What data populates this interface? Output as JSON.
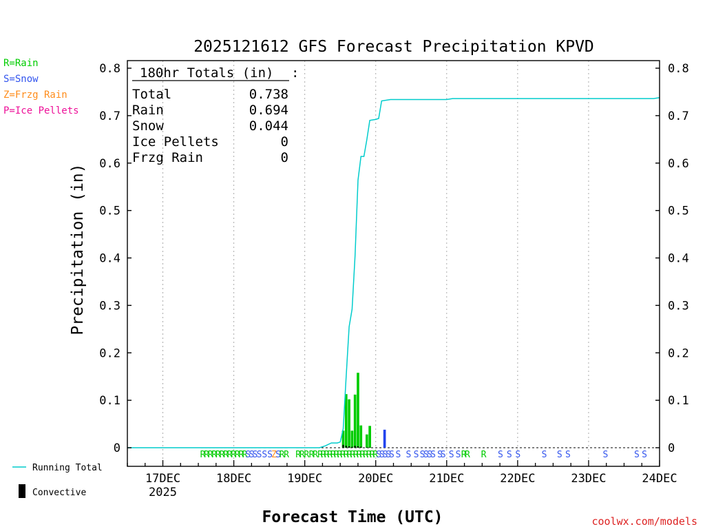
{
  "chart_data": {
    "type": "bar+line",
    "title": "2025121612 GFS Forecast Precipitation KPVD",
    "ylabel": "Precipitation (in)",
    "xlabel": "Forecast Time (UTC)",
    "ylim": [
      0,
      0.8
    ],
    "y_ticks": [
      0,
      0.1,
      0.2,
      0.3,
      0.4,
      0.5,
      0.6,
      0.7,
      0.8
    ],
    "y_tick_labels": [
      "0",
      "0.1",
      "0.2",
      "0.3",
      "0.4",
      "0.5",
      "0.6",
      "0.7",
      "0.8"
    ],
    "x_range_hours": [
      0,
      180
    ],
    "x_ticks": [
      {
        "hour": 12,
        "label": "17DEC",
        "sublabel": "2025"
      },
      {
        "hour": 36,
        "label": "18DEC"
      },
      {
        "hour": 60,
        "label": "19DEC"
      },
      {
        "hour": 84,
        "label": "20DEC"
      },
      {
        "hour": 108,
        "label": "21DEC"
      },
      {
        "hour": 132,
        "label": "22DEC"
      },
      {
        "hour": 156,
        "label": "23DEC"
      },
      {
        "hour": 180,
        "label": "24DEC"
      }
    ],
    "totals_box": {
      "heading": "180hr Totals (in)",
      "heading_suffix": ":",
      "rows": [
        {
          "label": "Total",
          "value": "0.738"
        },
        {
          "label": "Rain",
          "value": "0.694"
        },
        {
          "label": "Snow",
          "value": "0.044"
        },
        {
          "label": "Ice Pellets",
          "value": "0"
        },
        {
          "label": "Frzg Rain",
          "value": "0"
        }
      ]
    },
    "type_legend": [
      {
        "label": "R=Rain",
        "color": "#00cc00"
      },
      {
        "label": "S=Snow",
        "color": "#3355ee"
      },
      {
        "label": "Z=Frzg Rain",
        "color": "#ff8c1a"
      },
      {
        "label": "P=Ice Pellets",
        "color": "#ee1199"
      }
    ],
    "series_legend": [
      {
        "name": "Running Total",
        "color": "#00cccc",
        "kind": "line"
      },
      {
        "name": "Convective",
        "color": "#000000",
        "kind": "bar"
      }
    ],
    "bars": [
      {
        "hour": 73.0,
        "value": 0.036,
        "type": "rain",
        "convective": 0.006
      },
      {
        "hour": 74.0,
        "value": 0.113,
        "type": "rain",
        "convective": 0.004
      },
      {
        "hour": 75.0,
        "value": 0.102,
        "type": "rain",
        "convective": 0.003
      },
      {
        "hour": 76.0,
        "value": 0.036,
        "type": "rain",
        "convective": 0.002
      },
      {
        "hour": 77.0,
        "value": 0.112,
        "type": "rain",
        "convective": 0.004
      },
      {
        "hour": 78.0,
        "value": 0.158,
        "type": "rain",
        "convective": 0.003
      },
      {
        "hour": 79.0,
        "value": 0.047,
        "type": "rain",
        "convective": 0.002
      },
      {
        "hour": 81.0,
        "value": 0.028,
        "type": "rain",
        "convective": 0.001
      },
      {
        "hour": 82.0,
        "value": 0.046,
        "type": "rain",
        "convective": 0.001
      },
      {
        "hour": 87.0,
        "value": 0.038,
        "type": "snow",
        "convective": 0
      }
    ],
    "running_total": {
      "hours": [
        0,
        65,
        67,
        69,
        71,
        72,
        73,
        74,
        75,
        76,
        77,
        78,
        79,
        80,
        81,
        82,
        84,
        85,
        86,
        89,
        108,
        110,
        178,
        180
      ],
      "values": [
        0,
        0,
        0.004,
        0.01,
        0.01,
        0.012,
        0.04,
        0.15,
        0.255,
        0.292,
        0.404,
        0.564,
        0.614,
        0.614,
        0.65,
        0.69,
        0.692,
        0.694,
        0.731,
        0.734,
        0.734,
        0.736,
        0.736,
        0.738
      ]
    },
    "type_markers": [
      {
        "hour": 25.5,
        "code": "R"
      },
      {
        "hour": 26.8,
        "code": "R"
      },
      {
        "hour": 28.1,
        "code": "R"
      },
      {
        "hour": 29.4,
        "code": "R"
      },
      {
        "hour": 30.7,
        "code": "R"
      },
      {
        "hour": 32.0,
        "code": "R"
      },
      {
        "hour": 33.3,
        "code": "R"
      },
      {
        "hour": 34.6,
        "code": "R"
      },
      {
        "hour": 35.9,
        "code": "R"
      },
      {
        "hour": 37.2,
        "code": "R"
      },
      {
        "hour": 38.5,
        "code": "R"
      },
      {
        "hour": 39.7,
        "code": "R"
      },
      {
        "hour": 40.8,
        "code": "S"
      },
      {
        "hour": 42.0,
        "code": "S"
      },
      {
        "hour": 43.2,
        "code": "S"
      },
      {
        "hour": 44.6,
        "code": "S"
      },
      {
        "hour": 46.4,
        "code": "S"
      },
      {
        "hour": 48.2,
        "code": "S"
      },
      {
        "hour": 49.6,
        "code": "Z"
      },
      {
        "hour": 51.0,
        "code": "S"
      },
      {
        "hour": 52.3,
        "code": "R"
      },
      {
        "hour": 53.8,
        "code": "R"
      },
      {
        "hour": 57.8,
        "code": "R"
      },
      {
        "hour": 59.1,
        "code": "R"
      },
      {
        "hour": 60.6,
        "code": "R"
      },
      {
        "hour": 62.3,
        "code": "R"
      },
      {
        "hour": 63.6,
        "code": "R"
      },
      {
        "hour": 65.2,
        "code": "R"
      },
      {
        "hour": 66.3,
        "code": "R"
      },
      {
        "hour": 67.4,
        "code": "R"
      },
      {
        "hour": 68.5,
        "code": "R"
      },
      {
        "hour": 69.6,
        "code": "R"
      },
      {
        "hour": 70.7,
        "code": "R"
      },
      {
        "hour": 71.8,
        "code": "R"
      },
      {
        "hour": 72.9,
        "code": "R"
      },
      {
        "hour": 74.0,
        "code": "R"
      },
      {
        "hour": 75.1,
        "code": "R"
      },
      {
        "hour": 76.2,
        "code": "R"
      },
      {
        "hour": 77.3,
        "code": "R"
      },
      {
        "hour": 78.4,
        "code": "R"
      },
      {
        "hour": 79.5,
        "code": "R"
      },
      {
        "hour": 80.6,
        "code": "R"
      },
      {
        "hour": 81.7,
        "code": "R"
      },
      {
        "hour": 82.8,
        "code": "R"
      },
      {
        "hour": 83.9,
        "code": "R"
      },
      {
        "hour": 85.0,
        "code": "S"
      },
      {
        "hour": 86.1,
        "code": "S"
      },
      {
        "hour": 87.2,
        "code": "S"
      },
      {
        "hour": 88.3,
        "code": "S"
      },
      {
        "hour": 89.4,
        "code": "S"
      },
      {
        "hour": 91.6,
        "code": "S"
      },
      {
        "hour": 95.1,
        "code": "S"
      },
      {
        "hour": 97.7,
        "code": "S"
      },
      {
        "hour": 99.8,
        "code": "S"
      },
      {
        "hour": 101.0,
        "code": "S"
      },
      {
        "hour": 102.2,
        "code": "S"
      },
      {
        "hour": 103.4,
        "code": "S"
      },
      {
        "hour": 105.7,
        "code": "S"
      },
      {
        "hour": 106.8,
        "code": "S"
      },
      {
        "hour": 109.6,
        "code": "S"
      },
      {
        "hour": 111.9,
        "code": "S"
      },
      {
        "hour": 113.8,
        "code": "R"
      },
      {
        "hour": 115.0,
        "code": "R"
      },
      {
        "hour": 120.5,
        "code": "R"
      },
      {
        "hour": 126.2,
        "code": "S"
      },
      {
        "hour": 129.2,
        "code": "S"
      },
      {
        "hour": 132.1,
        "code": "S"
      },
      {
        "hour": 141.0,
        "code": "S"
      },
      {
        "hour": 146.2,
        "code": "S"
      },
      {
        "hour": 149.0,
        "code": "S"
      },
      {
        "hour": 161.7,
        "code": "S"
      },
      {
        "hour": 172.3,
        "code": "S"
      },
      {
        "hour": 174.9,
        "code": "S"
      }
    ],
    "marker_colors": {
      "R": "#00cc00",
      "S": "#3355ee",
      "Z": "#ff8c1a",
      "P": "#ee1199"
    },
    "colors": {
      "rain_bar": "#00cc00",
      "snow_bar": "#2244ee",
      "convective_bar": "#000000",
      "running_total": "#00cccc"
    }
  },
  "credit": "coolwx.com/models"
}
